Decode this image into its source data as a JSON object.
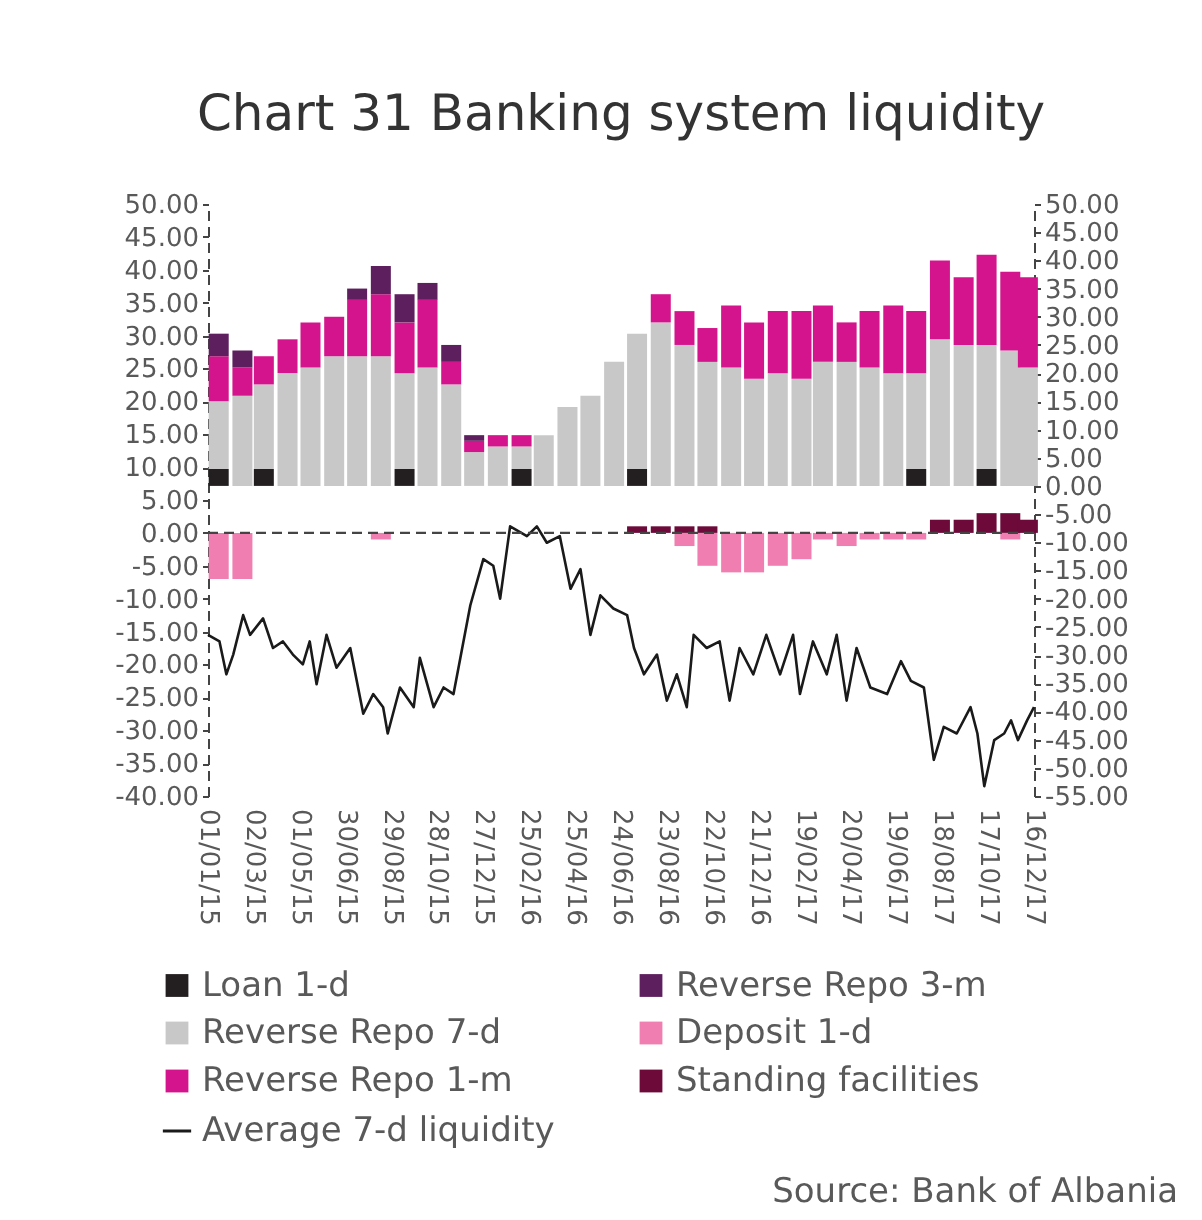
{
  "chart_data": {
    "type": "bar",
    "title": "Chart 31 Banking system liquidity",
    "annotations": [
      "Source: Bank of Albania"
    ],
    "stacked": true,
    "legend": "bottom",
    "x": [
      "2015-01-15",
      "2015-02-15",
      "2015-03-15",
      "2015-04-15",
      "2015-05-15",
      "2015-06-15",
      "2015-07-15",
      "2015-08-15",
      "2015-09-15",
      "2015-10-15",
      "2015-11-15",
      "2015-12-15",
      "2016-01-15",
      "2016-02-15",
      "2016-03-15",
      "2016-04-15",
      "2016-05-15",
      "2016-06-15",
      "2016-07-15",
      "2016-08-15",
      "2016-09-15",
      "2016-10-15",
      "2016-11-15",
      "2016-12-15",
      "2017-01-15",
      "2017-02-15",
      "2017-03-15",
      "2017-04-15",
      "2017-05-15",
      "2017-06-15",
      "2017-07-15",
      "2017-08-15",
      "2017-09-15",
      "2017-10-15",
      "2017-11-15",
      "2017-12-08"
    ],
    "xlim": [
      "2015-01-01",
      "2017-12-16"
    ],
    "xticks": [
      {
        "value": "2015-01-01",
        "label": "01/01/15"
      },
      {
        "value": "2015-03-02",
        "label": "02/03/15"
      },
      {
        "value": "2015-05-01",
        "label": "01/05/15"
      },
      {
        "value": "2015-06-30",
        "label": "30/06/15"
      },
      {
        "value": "2015-08-29",
        "label": "29/08/15"
      },
      {
        "value": "2015-10-28",
        "label": "28/10/15"
      },
      {
        "value": "2015-12-27",
        "label": "27/12/15"
      },
      {
        "value": "2016-02-25",
        "label": "25/02/16"
      },
      {
        "value": "2016-04-25",
        "label": "25/04/16"
      },
      {
        "value": "2016-06-24",
        "label": "24/06/16"
      },
      {
        "value": "2016-08-23",
        "label": "23/08/16"
      },
      {
        "value": "2016-10-22",
        "label": "22/10/16"
      },
      {
        "value": "2016-12-21",
        "label": "21/12/16"
      },
      {
        "value": "2017-02-19",
        "label": "19/02/17"
      },
      {
        "value": "2017-04-20",
        "label": "20/04/17"
      },
      {
        "value": "2017-06-19",
        "label": "19/06/17"
      },
      {
        "value": "2017-08-18",
        "label": "18/08/17"
      },
      {
        "value": "2017-10-17",
        "label": "17/10/17"
      },
      {
        "value": "2017-12-16",
        "label": "16/12/17"
      }
    ],
    "ylim": [
      -40,
      50
    ],
    "yticks": [
      {
        "value": -40,
        "label": "-40.00"
      },
      {
        "value": -35,
        "label": "-35.00"
      },
      {
        "value": -30,
        "label": "-30.00"
      },
      {
        "value": -25,
        "label": "-25.00"
      },
      {
        "value": -20,
        "label": "-20.00"
      },
      {
        "value": -15,
        "label": "-15.00"
      },
      {
        "value": -10,
        "label": "-10.00"
      },
      {
        "value": -5,
        "label": "-5.00"
      },
      {
        "value": 0,
        "label": "0.00"
      },
      {
        "value": 5,
        "label": "5.00"
      },
      {
        "value": 10,
        "label": "10.00"
      },
      {
        "value": 15,
        "label": "15.00"
      },
      {
        "value": 20,
        "label": "20.00"
      },
      {
        "value": 25,
        "label": "25.00"
      },
      {
        "value": 30,
        "label": "30.00"
      },
      {
        "value": 35,
        "label": "35.00"
      },
      {
        "value": 40,
        "label": "40.00"
      },
      {
        "value": 45,
        "label": "45.00"
      },
      {
        "value": 50,
        "label": "50.00"
      }
    ],
    "y2lim": [
      -55,
      50
    ],
    "y2ticks": [
      {
        "value": -55,
        "label": "-55.00"
      },
      {
        "value": -50,
        "label": "-50.00"
      },
      {
        "value": -45,
        "label": "-45.00"
      },
      {
        "value": -40,
        "label": "-40.00"
      },
      {
        "value": -35,
        "label": "-35.00"
      },
      {
        "value": -30,
        "label": "-30.00"
      },
      {
        "value": -25,
        "label": "-25.00"
      },
      {
        "value": -20,
        "label": "-20.00"
      },
      {
        "value": -15,
        "label": "-15.00"
      },
      {
        "value": -10,
        "label": "-10.00"
      },
      {
        "value": -5,
        "label": "-5.00"
      },
      {
        "value": 0,
        "label": "0.00"
      },
      {
        "value": 5,
        "label": "5.00"
      },
      {
        "value": 10,
        "label": "10.00"
      },
      {
        "value": 15,
        "label": "15.00"
      },
      {
        "value": 20,
        "label": "20.00"
      },
      {
        "value": 25,
        "label": "25.00"
      },
      {
        "value": 30,
        "label": "30.00"
      },
      {
        "value": 35,
        "label": "35.00"
      },
      {
        "value": 40,
        "label": "40.00"
      },
      {
        "value": 45,
        "label": "45.00"
      },
      {
        "value": 50,
        "label": "50.00"
      }
    ],
    "ref_lines": [
      {
        "axis": "y",
        "value": 0,
        "line_style": "dashed"
      }
    ],
    "series": [
      {
        "name": "Loan 1-d",
        "color": "#231f20",
        "axis": "y2",
        "values": [
          3,
          null,
          3,
          null,
          null,
          null,
          null,
          null,
          3,
          null,
          null,
          null,
          null,
          3,
          null,
          null,
          null,
          null,
          3,
          null,
          null,
          null,
          null,
          null,
          null,
          null,
          null,
          null,
          null,
          null,
          3,
          null,
          null,
          3,
          null,
          null
        ]
      },
      {
        "name": "Reverse Repo 7-d",
        "color": "#c8c8c8",
        "axis": "y2",
        "values": [
          12,
          16,
          15,
          20,
          21,
          23,
          23,
          23,
          17,
          21,
          18,
          6,
          7,
          4,
          9,
          14,
          16,
          22,
          24,
          29,
          25,
          22,
          21,
          19,
          20,
          19,
          22,
          22,
          21,
          20,
          17,
          26,
          25,
          22,
          24,
          21
        ]
      },
      {
        "name": "Reverse Repo 1-m",
        "color": "#d4148c",
        "axis": "y2",
        "values": [
          8,
          5,
          5,
          6,
          8,
          7,
          10,
          11,
          9,
          12,
          4,
          2,
          2,
          2,
          null,
          null,
          null,
          null,
          null,
          5,
          6,
          6,
          11,
          10,
          11,
          12,
          10,
          7,
          10,
          12,
          11,
          14,
          12,
          16,
          14,
          16
        ]
      },
      {
        "name": "Reverse Repo 3-m",
        "color": "#5e1f5e",
        "axis": "y2",
        "values": [
          4,
          3,
          null,
          null,
          null,
          null,
          2,
          5,
          5,
          3,
          3,
          1,
          null,
          null,
          null,
          null,
          null,
          null,
          null,
          null,
          null,
          null,
          null,
          null,
          null,
          null,
          null,
          null,
          null,
          null,
          null,
          null,
          null,
          null,
          null,
          null
        ]
      },
      {
        "name": "Deposit 1-d",
        "color": "#f07eb0",
        "values": [
          -7,
          -7,
          null,
          null,
          null,
          null,
          null,
          -1,
          null,
          null,
          null,
          null,
          null,
          null,
          null,
          null,
          null,
          null,
          null,
          null,
          -2,
          -5,
          -6,
          -6,
          -5,
          -4,
          -1,
          -2,
          -1,
          -1,
          -1,
          null,
          null,
          null,
          -1,
          null
        ]
      },
      {
        "name": "Standing facilities",
        "color": "#6d0a3a",
        "values": [
          null,
          null,
          null,
          null,
          null,
          null,
          null,
          null,
          null,
          null,
          null,
          null,
          null,
          null,
          null,
          null,
          null,
          null,
          1,
          1,
          1,
          1,
          null,
          null,
          null,
          null,
          null,
          null,
          null,
          null,
          null,
          2,
          2,
          3,
          3,
          2
        ]
      },
      {
        "name": "Average 7-d liquidity",
        "type": "line",
        "color": "#1a1a1a",
        "x": [
          "2015-01-01",
          "2015-01-16",
          "2015-01-25",
          "2015-02-03",
          "2015-02-16",
          "2015-02-25",
          "2015-03-14",
          "2015-03-27",
          "2015-04-09",
          "2015-04-22",
          "2015-05-05",
          "2015-05-14",
          "2015-05-23",
          "2015-06-05",
          "2015-06-18",
          "2015-07-06",
          "2015-07-23",
          "2015-08-05",
          "2015-08-18",
          "2015-08-24",
          "2015-09-09",
          "2015-09-27",
          "2015-10-05",
          "2015-10-23",
          "2015-11-05",
          "2015-11-18",
          "2015-11-27",
          "2015-12-10",
          "2015-12-27",
          "2016-01-09",
          "2016-01-18",
          "2016-01-31",
          "2016-02-22",
          "2016-03-06",
          "2016-03-19",
          "2016-04-05",
          "2016-04-19",
          "2016-05-02",
          "2016-05-15",
          "2016-05-28",
          "2016-06-14",
          "2016-07-02",
          "2016-07-11",
          "2016-07-24",
          "2016-08-10",
          "2016-08-23",
          "2016-09-05",
          "2016-09-18",
          "2016-09-27",
          "2016-10-14",
          "2016-10-31",
          "2016-11-13",
          "2016-11-26",
          "2016-12-14",
          "2016-12-31",
          "2017-01-18",
          "2017-02-04",
          "2017-02-13",
          "2017-03-02",
          "2017-03-20",
          "2017-04-02",
          "2017-04-15",
          "2017-04-28",
          "2017-05-16",
          "2017-06-07",
          "2017-06-25",
          "2017-07-08",
          "2017-07-25",
          "2017-08-07",
          "2017-08-20",
          "2017-09-06",
          "2017-09-24",
          "2017-10-03",
          "2017-10-12",
          "2017-10-25",
          "2017-11-07",
          "2017-11-16",
          "2017-11-25",
          "2017-12-07",
          "2017-12-16"
        ],
        "values": [
          -15.5,
          -16.5,
          -21.5,
          -18.5,
          -12.5,
          -15.5,
          -13,
          -17.5,
          -16.5,
          -18.5,
          -20,
          -16.5,
          -23,
          -15.5,
          -20.5,
          -17.5,
          -27.5,
          -24.5,
          -26.5,
          -30.5,
          -23.5,
          -26.5,
          -19,
          -26.5,
          -23.5,
          -24.5,
          -19,
          -11,
          -4,
          -5,
          -10,
          1,
          -0.5,
          1,
          -1.5,
          -0.5,
          -8.5,
          -5.5,
          -15.5,
          -9.5,
          -11.5,
          -12.5,
          -17.5,
          -21.5,
          -18.5,
          -25.5,
          -21.5,
          -26.5,
          -15.5,
          -17.5,
          -16.5,
          -25.5,
          -17.5,
          -21.5,
          -15.5,
          -21.5,
          -15.5,
          -24.5,
          -16.5,
          -21.5,
          -15.5,
          -25.5,
          -17.5,
          -23.5,
          -24.5,
          -19.5,
          -22.5,
          -23.5,
          -34.5,
          -29.5,
          -30.5,
          -26.5,
          -30.5,
          -38.5,
          -31.5,
          -30.5,
          -28.5,
          -31.5,
          -28.5,
          -26.5
        ]
      }
    ]
  }
}
